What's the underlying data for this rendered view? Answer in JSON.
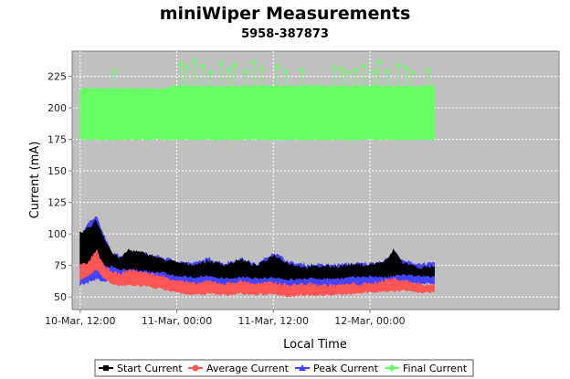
{
  "chart_data": {
    "type": "line",
    "title": "miniWiper Measurements",
    "subtitle": "5958-387873",
    "xlabel": "Local Time",
    "ylabel": "Current (mA)",
    "ylim": [
      40,
      245
    ],
    "xlim_hours": [
      -1,
      59.5
    ],
    "x_ticks": [
      {
        "label": "10-Mar, 12:00",
        "hour": 0
      },
      {
        "label": "11-Mar, 00:00",
        "hour": 12
      },
      {
        "label": "11-Mar, 12:00",
        "hour": 24
      },
      {
        "label": "12-Mar, 00:00",
        "hour": 36
      }
    ],
    "y_ticks": [
      50,
      75,
      100,
      125,
      150,
      175,
      200,
      225
    ],
    "grid": true,
    "legend_position": "bottom",
    "series": [
      {
        "name": "Final Current",
        "color": "#66ff66",
        "marker": "diamond",
        "band": true,
        "x": [
          0,
          2,
          4,
          6,
          8,
          10,
          12,
          14,
          16,
          18,
          20,
          22,
          24,
          26,
          28,
          30,
          32,
          34,
          36,
          38,
          40,
          42,
          44
        ],
        "low": [
          175,
          175,
          175,
          175,
          175,
          175,
          175,
          175,
          175,
          175,
          175,
          175,
          175,
          175,
          175,
          175,
          175,
          175,
          175,
          175,
          175,
          175,
          175
        ],
        "high": [
          215,
          215,
          215,
          215,
          215,
          215,
          217,
          217,
          217,
          217,
          217,
          217,
          217,
          217,
          217,
          217,
          217,
          217,
          217,
          217,
          217,
          217,
          217
        ],
        "spikes": [
          {
            "x": 4.2,
            "y": 229
          },
          {
            "x": 12.5,
            "y": 235
          },
          {
            "x": 13.2,
            "y": 232
          },
          {
            "x": 14.2,
            "y": 237
          },
          {
            "x": 15.2,
            "y": 233
          },
          {
            "x": 16.2,
            "y": 228
          },
          {
            "x": 17.5,
            "y": 235
          },
          {
            "x": 18.5,
            "y": 230
          },
          {
            "x": 19.2,
            "y": 234
          },
          {
            "x": 20.5,
            "y": 229
          },
          {
            "x": 21.5,
            "y": 236
          },
          {
            "x": 22.5,
            "y": 231
          },
          {
            "x": 24.5,
            "y": 233
          },
          {
            "x": 25.5,
            "y": 229
          },
          {
            "x": 27.5,
            "y": 230
          },
          {
            "x": 31.5,
            "y": 232
          },
          {
            "x": 32.5,
            "y": 231
          },
          {
            "x": 33.2,
            "y": 228
          },
          {
            "x": 34.2,
            "y": 230
          },
          {
            "x": 35.2,
            "y": 233
          },
          {
            "x": 36.5,
            "y": 229
          },
          {
            "x": 37.2,
            "y": 236
          },
          {
            "x": 38.2,
            "y": 229
          },
          {
            "x": 39.5,
            "y": 234
          },
          {
            "x": 40.5,
            "y": 232
          },
          {
            "x": 41.2,
            "y": 228
          },
          {
            "x": 43.2,
            "y": 230
          }
        ]
      },
      {
        "name": "Peak Current",
        "color": "#4444ff",
        "marker": "triangle",
        "band": true,
        "x": [
          0,
          1,
          2,
          3,
          4,
          5,
          6,
          8,
          10,
          12,
          14,
          16,
          18,
          20,
          22,
          24,
          26,
          28,
          30,
          32,
          34,
          36,
          38,
          39,
          40,
          42,
          44
        ],
        "low": [
          60,
          62,
          65,
          62,
          66,
          64,
          63,
          62,
          60,
          58,
          57,
          57,
          56,
          57,
          56,
          57,
          55,
          56,
          56,
          56,
          57,
          58,
          58,
          58,
          60,
          61,
          61
        ],
        "high": [
          96,
          108,
          113,
          98,
          84,
          82,
          85,
          84,
          81,
          78,
          76,
          80,
          76,
          80,
          75,
          85,
          77,
          75,
          75,
          75,
          76,
          76,
          79,
          86,
          78,
          76,
          76
        ]
      },
      {
        "name": "Start Current",
        "color": "#000000",
        "marker": "square",
        "band": true,
        "x": [
          0,
          1,
          2,
          3,
          4,
          5,
          6,
          8,
          10,
          12,
          14,
          16,
          18,
          20,
          22,
          24,
          26,
          28,
          30,
          32,
          34,
          36,
          38,
          39,
          40,
          42,
          44
        ],
        "low": [
          73,
          74,
          80,
          74,
          75,
          72,
          72,
          71,
          70,
          67,
          66,
          67,
          65,
          66,
          65,
          66,
          64,
          65,
          65,
          65,
          66,
          67,
          66,
          67,
          68,
          67,
          66
        ],
        "high": [
          100,
          104,
          110,
          96,
          84,
          80,
          87,
          84,
          80,
          77,
          75,
          78,
          75,
          79,
          74,
          83,
          76,
          73,
          74,
          74,
          75,
          75,
          78,
          87,
          77,
          73,
          73
        ]
      },
      {
        "name": "Average Current",
        "color": "#ff5555",
        "marker": "circle",
        "band": true,
        "x": [
          0,
          1,
          2,
          3,
          4,
          5,
          6,
          8,
          10,
          12,
          14,
          16,
          18,
          20,
          22,
          24,
          26,
          28,
          30,
          32,
          34,
          36,
          38,
          39,
          40,
          42,
          44
        ],
        "low": [
          64,
          67,
          73,
          65,
          60,
          59,
          60,
          59,
          57,
          54,
          52,
          53,
          52,
          53,
          52,
          53,
          51,
          52,
          52,
          52,
          53,
          54,
          55,
          55,
          56,
          54,
          54
        ],
        "high": [
          75,
          76,
          87,
          73,
          70,
          67,
          71,
          69,
          66,
          63,
          60,
          62,
          60,
          62,
          60,
          61,
          59,
          60,
          59,
          59,
          60,
          60,
          63,
          64,
          63,
          60,
          59
        ]
      }
    ],
    "legend": [
      {
        "name": "Start Current",
        "color": "#000000",
        "marker": "square"
      },
      {
        "name": "Average Current",
        "color": "#ff5555",
        "marker": "circle"
      },
      {
        "name": "Peak Current",
        "color": "#4444ff",
        "marker": "triangle"
      },
      {
        "name": "Final Current",
        "color": "#66ff66",
        "marker": "diamond"
      }
    ]
  }
}
